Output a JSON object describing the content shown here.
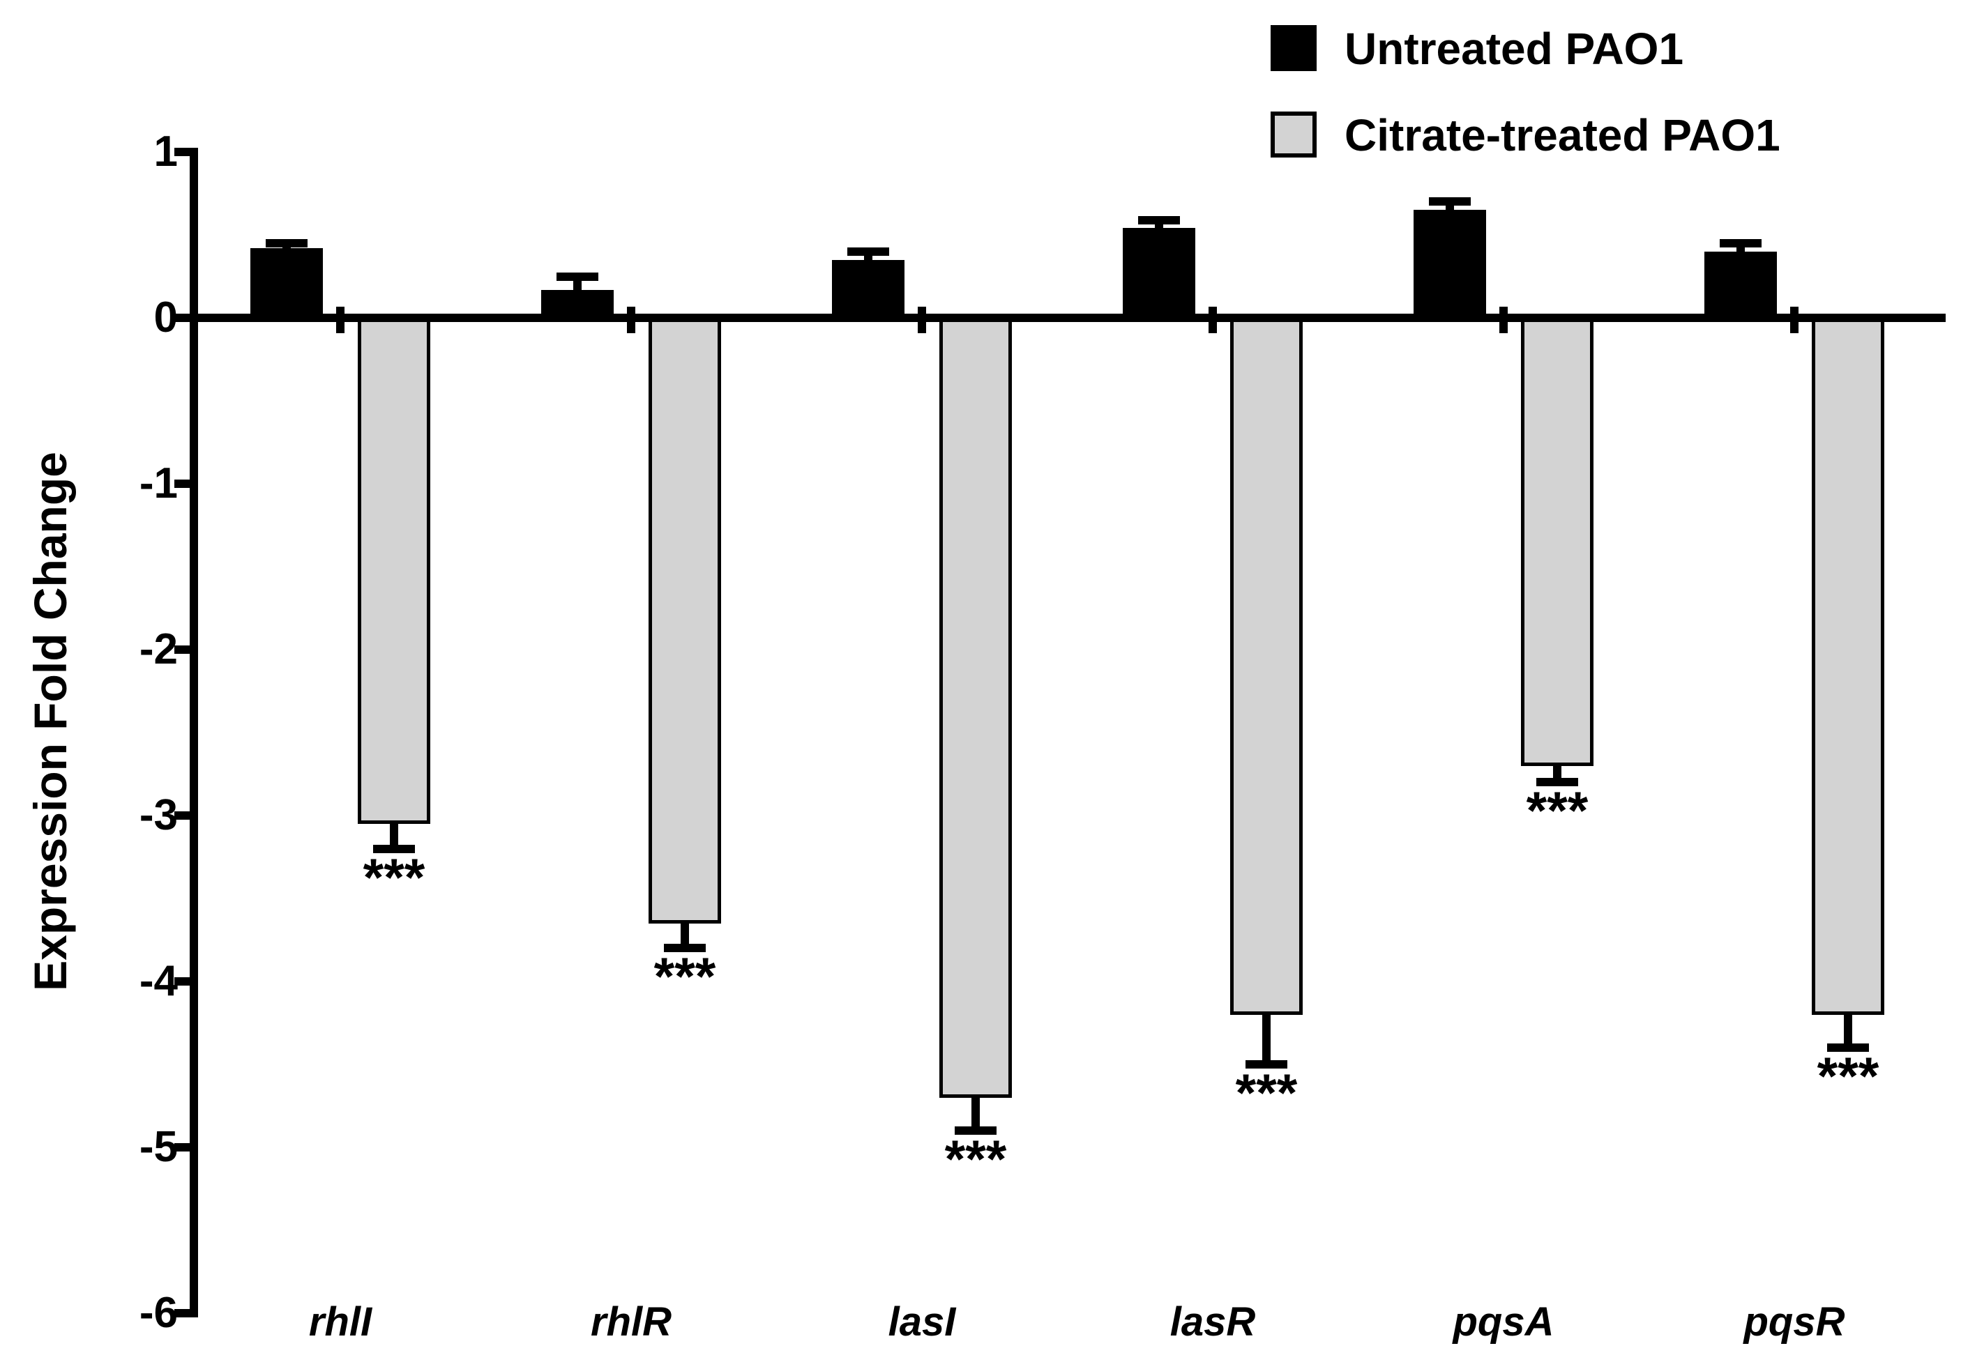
{
  "figure": {
    "background": "#ffffff",
    "significance_marker": "***",
    "colors": {
      "untreated_bar": "#000000",
      "citrate_bar": "#d3d3d3",
      "axis": "#000000"
    }
  },
  "chart_data": {
    "type": "bar",
    "title": "",
    "xlabel": "",
    "ylabel": "Expression Fold Change",
    "ylim": [
      -6,
      1
    ],
    "yticks": [
      1,
      0,
      -1,
      -2,
      -3,
      -4,
      -5,
      -6
    ],
    "grid": false,
    "legend_position": "top-right",
    "categories": [
      "rhlI",
      "rhlR",
      "lasI",
      "lasR",
      "pqsA",
      "pqsR"
    ],
    "series": [
      {
        "name": "Untreated PAO1",
        "color": "#000000",
        "values": [
          0.42,
          0.17,
          0.35,
          0.54,
          0.65,
          0.4
        ],
        "errors": [
          0.03,
          0.08,
          0.05,
          0.05,
          0.05,
          0.05
        ],
        "significance": [
          "",
          "",
          "",
          "",
          "",
          ""
        ]
      },
      {
        "name": "Citrate-treated PAO1",
        "color": "#d3d3d3",
        "values": [
          -3.05,
          -3.65,
          -4.7,
          -4.2,
          -2.7,
          -4.2
        ],
        "errors": [
          0.15,
          0.15,
          0.2,
          0.3,
          0.1,
          0.2
        ],
        "significance": [
          "***",
          "***",
          "***",
          "***",
          "***",
          "***"
        ]
      }
    ]
  }
}
